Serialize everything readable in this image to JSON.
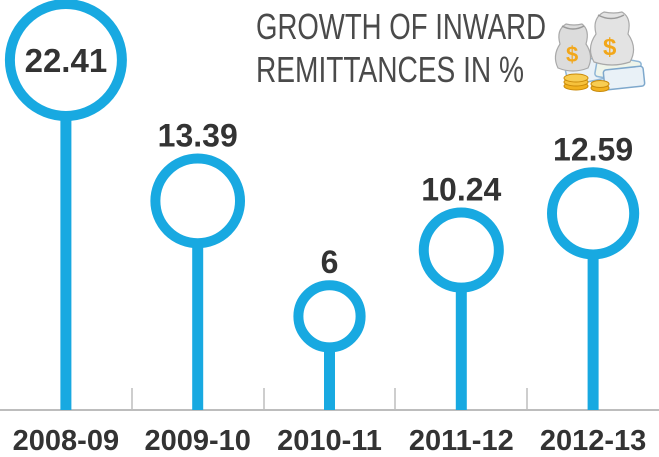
{
  "title": {
    "line1": "GROWTH OF INWARD",
    "line2": "REMITTANCES IN %"
  },
  "chart_data": {
    "type": "lollipop",
    "categories": [
      "2008-09",
      "2009-10",
      "2010-11",
      "2011-12",
      "2012-13"
    ],
    "values": [
      22.41,
      13.39,
      6,
      10.24,
      12.59
    ],
    "value_labels": [
      "22.41",
      "13.39",
      "6",
      "10.24",
      "12.59"
    ],
    "title": "GROWTH OF INWARD REMITTANCES IN %",
    "xlabel": "",
    "ylabel": "",
    "grid": false,
    "legend": "none"
  },
  "colors": {
    "accent": "#18a9e1",
    "baseline": "#bdbdbd",
    "text": "#333333",
    "title": "#4a4a4a"
  },
  "icons": [
    "money-bags-icon"
  ]
}
